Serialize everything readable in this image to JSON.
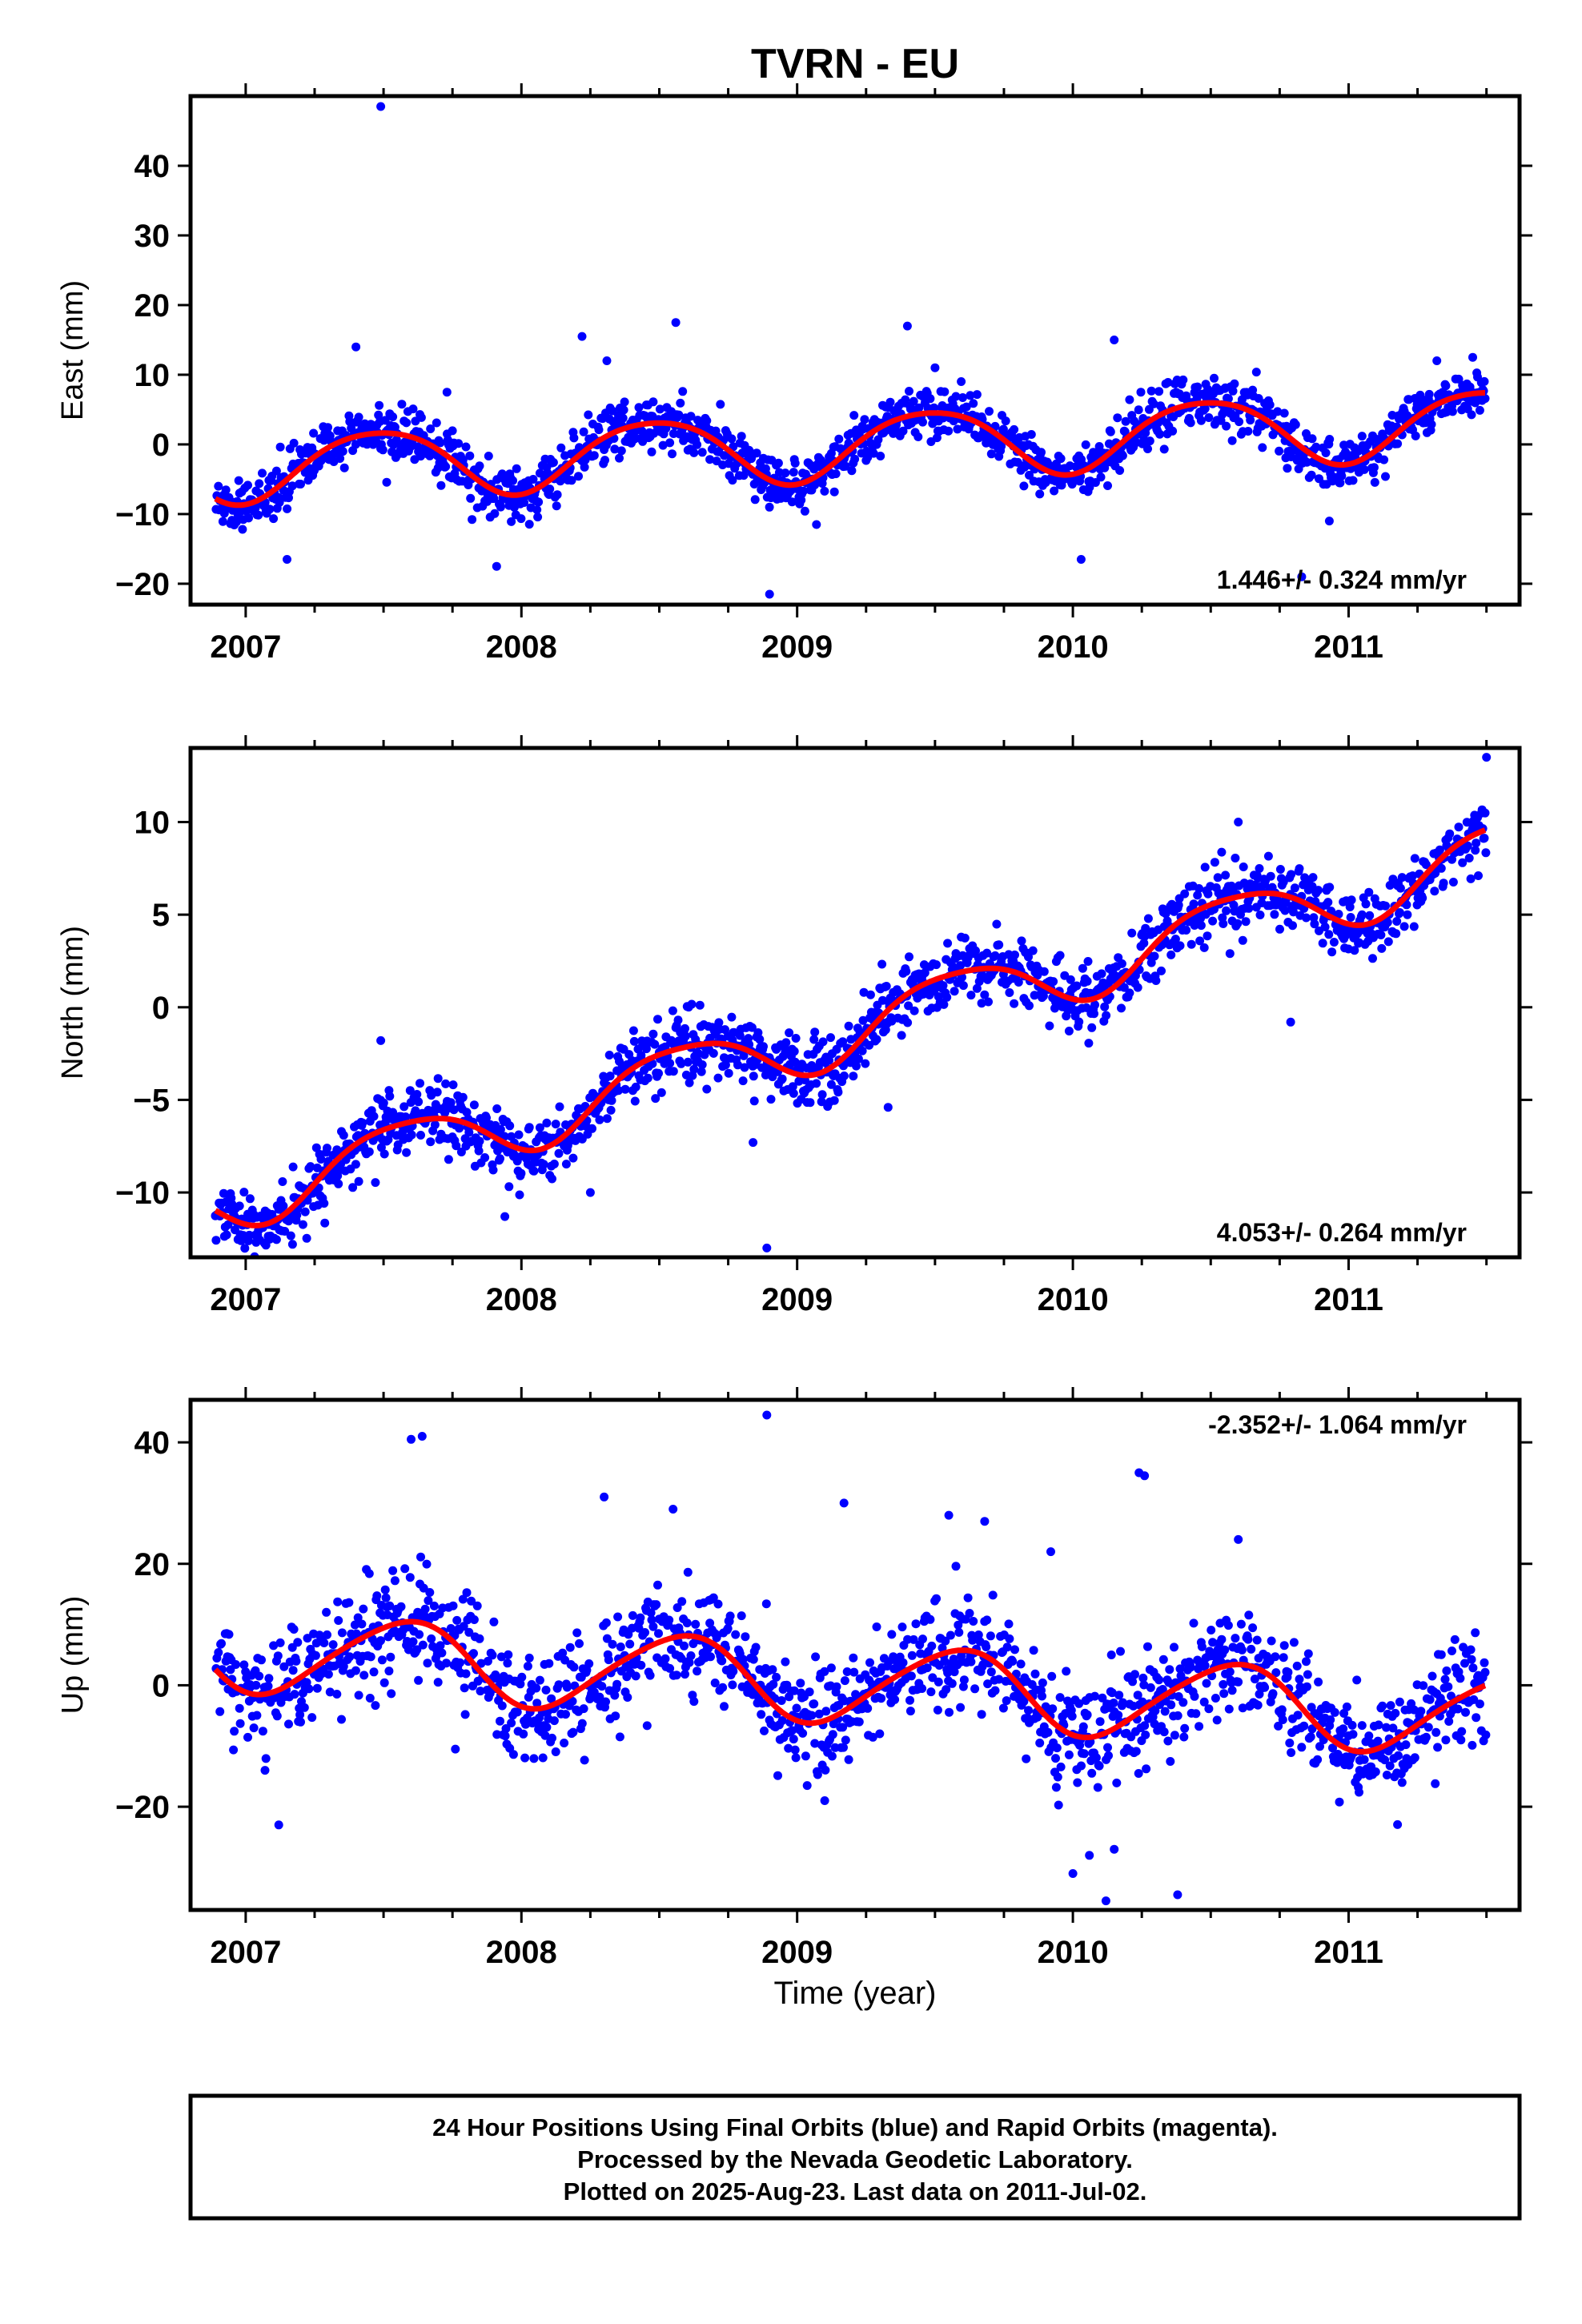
{
  "title": "TVRN - EU",
  "x_axis_label": "Time (year)",
  "footer_lines": [
    "24 Hour Positions Using Final Orbits (blue) and Rapid Orbits (magenta).",
    "Processed by the Nevada Geodetic Laboratory.",
    "Plotted on 2025-Aug-23. Last data on 2011-Jul-02."
  ],
  "colors": {
    "points": "#0000ff",
    "model": "#ff0000",
    "frame": "#000000"
  },
  "chart_data": [
    {
      "type": "scatter",
      "panel": "east",
      "ylabel": "East (mm)",
      "xlim": [
        2006.8,
        2011.62
      ],
      "ylim": [
        -23,
        50
      ],
      "x_ticks": [
        2007,
        2008,
        2009,
        2010,
        2011
      ],
      "y_ticks": [
        -20,
        -10,
        0,
        10,
        20,
        30,
        40
      ],
      "rate_label": "1.446+/- 0.324 mm/yr",
      "rate_position": "bottom-right",
      "model": {
        "velocity": 1.446,
        "annual_amplitude": 4.8,
        "annual_phase": 0.23,
        "semiannual_amplitude": 0.6,
        "semiannual_phase": 0.1,
        "offset_at_2009": -0.4
      },
      "scatter_sigma": 1.8,
      "outliers": [
        [
          2007.49,
          48.5
        ],
        [
          2007.4,
          14
        ],
        [
          2008.56,
          17.5
        ],
        [
          2009.4,
          17
        ],
        [
          2010.15,
          15
        ],
        [
          2008.22,
          15.5
        ],
        [
          2007.15,
          -16.5
        ],
        [
          2007.91,
          -17.5
        ],
        [
          2008.9,
          -21.5
        ],
        [
          2009.07,
          -11.5
        ],
        [
          2010.03,
          -16.5
        ],
        [
          2010.83,
          -19
        ],
        [
          2010.93,
          -11
        ],
        [
          2011.32,
          12
        ],
        [
          2011.45,
          12.5
        ],
        [
          2007.73,
          7.5
        ],
        [
          2008.31,
          12
        ],
        [
          2009.5,
          11
        ]
      ]
    },
    {
      "type": "scatter",
      "panel": "north",
      "ylabel": "North (mm)",
      "xlim": [
        2006.8,
        2011.62
      ],
      "ylim": [
        -13.5,
        14
      ],
      "x_ticks": [
        2007,
        2008,
        2009,
        2010,
        2011
      ],
      "y_ticks": [
        -10,
        -5,
        0,
        5,
        10
      ],
      "rate_label": "4.053+/- 0.264 mm/yr",
      "rate_position": "bottom-right",
      "model": {
        "velocity": 4.053,
        "annual_amplitude": 1.7,
        "annual_phase": 0.32,
        "semiannual_amplitude": 0.3,
        "semiannual_phase": 0.2,
        "offset_at_2009": -1.9
      },
      "scatter_sigma": 0.9,
      "outliers": [
        [
          2011.5,
          13.5
        ],
        [
          2008.89,
          -13
        ],
        [
          2007.17,
          -12.8
        ],
        [
          2008.84,
          -7.3
        ],
        [
          2007.94,
          -11.3
        ],
        [
          2009.33,
          -5.4
        ],
        [
          2010.79,
          -0.8
        ],
        [
          2008.25,
          -10
        ],
        [
          2007.49,
          -1.8
        ],
        [
          2010.6,
          10
        ]
      ]
    },
    {
      "type": "scatter",
      "panel": "up",
      "ylabel": "Up (mm)",
      "xlim": [
        2006.8,
        2011.62
      ],
      "ylim": [
        -37,
        47
      ],
      "x_ticks": [
        2007,
        2008,
        2009,
        2010,
        2011
      ],
      "y_ticks": [
        -20,
        0,
        20,
        40
      ],
      "rate_label": "-2.352+/- 1.064 mm/yr",
      "rate_position": "top-right",
      "model": {
        "velocity": -2.352,
        "annual_amplitude": 6.5,
        "annual_phase": 0.32,
        "semiannual_amplitude": 0.8,
        "semiannual_phase": 0.1,
        "offset_at_2009": 0.8
      },
      "scatter_sigma": 4.5,
      "outliers": [
        [
          2007.6,
          40.5
        ],
        [
          2007.64,
          41
        ],
        [
          2008.89,
          44.5
        ],
        [
          2008.3,
          31
        ],
        [
          2009.17,
          30
        ],
        [
          2010.26,
          34.5
        ],
        [
          2010.24,
          35
        ],
        [
          2007.12,
          -23
        ],
        [
          2007.07,
          -14
        ],
        [
          2009.1,
          -19
        ],
        [
          2010.0,
          -31
        ],
        [
          2010.06,
          -28
        ],
        [
          2010.12,
          -35.5
        ],
        [
          2010.38,
          -34.5
        ],
        [
          2010.15,
          -27
        ],
        [
          2008.55,
          29
        ],
        [
          2009.55,
          28
        ],
        [
          2009.68,
          27
        ],
        [
          2010.6,
          24
        ],
        [
          2011.04,
          -14
        ],
        [
          2009.92,
          22
        ]
      ]
    }
  ]
}
